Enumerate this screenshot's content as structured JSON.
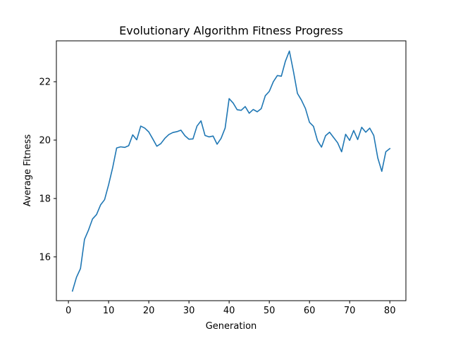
{
  "chart_data": {
    "type": "line",
    "title": "Evolutionary Algorithm Fitness Progress",
    "xlabel": "Generation",
    "ylabel": "Average Fitness",
    "xlim": [
      -3,
      84
    ],
    "ylim": [
      14.5,
      23.4
    ],
    "xticks": [
      0,
      10,
      20,
      30,
      40,
      50,
      60,
      70,
      80
    ],
    "yticks": [
      16,
      18,
      20,
      22
    ],
    "grid": false,
    "line_color": "#1f77b4",
    "series": [
      {
        "x": [
          1,
          2,
          3,
          4,
          5,
          6,
          7,
          8,
          9,
          10,
          11,
          12,
          13,
          14,
          15,
          16,
          17,
          18,
          19,
          20,
          21,
          22,
          23,
          24,
          25,
          26,
          27,
          28,
          29,
          30,
          31,
          32,
          33,
          34,
          35,
          36,
          37,
          38,
          39,
          40,
          41,
          42,
          43,
          44,
          45,
          46,
          47,
          48,
          49,
          50,
          51,
          52,
          53,
          54,
          55,
          56,
          57,
          58,
          59,
          60,
          61,
          62,
          63,
          64,
          65,
          66,
          67,
          68,
          69,
          70,
          71,
          72,
          73,
          74,
          75,
          76,
          77,
          78,
          79,
          80
        ],
        "values": [
          14.83,
          15.3,
          15.6,
          16.6,
          16.92,
          17.3,
          17.45,
          17.78,
          17.96,
          18.47,
          19.05,
          19.73,
          19.77,
          19.75,
          19.81,
          20.18,
          20.01,
          20.48,
          20.41,
          20.28,
          20.04,
          19.79,
          19.88,
          20.06,
          20.19,
          20.26,
          20.29,
          20.34,
          20.15,
          20.03,
          20.04,
          20.48,
          20.66,
          20.16,
          20.11,
          20.14,
          19.86,
          20.06,
          20.41,
          21.42,
          21.27,
          21.04,
          21.02,
          21.15,
          20.92,
          21.05,
          20.97,
          21.08,
          21.52,
          21.67,
          22.0,
          22.21,
          22.19,
          22.7,
          23.05,
          22.36,
          21.6,
          21.37,
          21.08,
          20.61,
          20.47,
          19.98,
          19.76,
          20.15,
          20.27,
          20.09,
          19.91,
          19.6,
          20.2,
          19.99,
          20.33,
          20.02,
          20.44,
          20.27,
          20.41,
          20.16,
          19.39,
          18.93,
          19.6,
          19.71
        ]
      }
    ]
  }
}
